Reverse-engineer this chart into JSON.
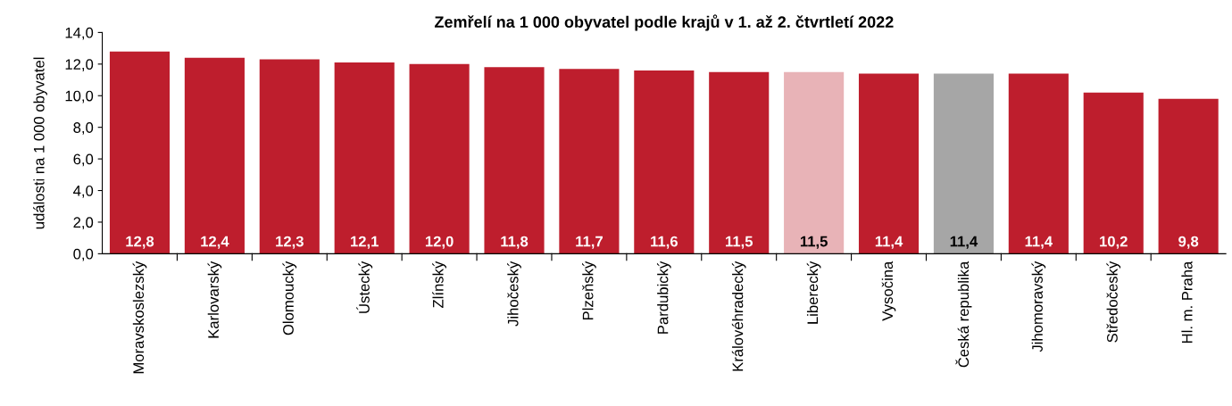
{
  "chart_data": {
    "type": "bar",
    "title": "Zemřelí na 1 000 obyvatel podle krajů v 1. až 2. čtvrtletí 2022",
    "ylabel": "události na 1 000 obyvatel",
    "categories": [
      "Moravskoslezský",
      "Karlovarský",
      "Olomoucký",
      "Ústecký",
      "Zlínský",
      "Jihočeský",
      "Plzeňský",
      "Pardubický",
      "Královéhradecký",
      "Liberecký",
      "Vysočina",
      "Česká republika",
      "Jihomoravský",
      "Středočeský",
      "Hl. m. Praha"
    ],
    "values": [
      12.8,
      12.4,
      12.3,
      12.1,
      12.0,
      11.8,
      11.7,
      11.6,
      11.5,
      11.5,
      11.4,
      11.4,
      11.4,
      10.2,
      9.8
    ],
    "colors": [
      "#be1e2d",
      "#be1e2d",
      "#be1e2d",
      "#be1e2d",
      "#be1e2d",
      "#be1e2d",
      "#be1e2d",
      "#be1e2d",
      "#be1e2d",
      "#e8b3b7",
      "#be1e2d",
      "#a6a6a6",
      "#be1e2d",
      "#be1e2d",
      "#be1e2d"
    ],
    "value_labels": [
      "12,8",
      "12,4",
      "12,3",
      "12,1",
      "12,0",
      "11,8",
      "11,7",
      "11,6",
      "11,5",
      "11,5",
      "11,4",
      "11,4",
      "11,4",
      "10,2",
      "9,8"
    ],
    "ylim": [
      0,
      14
    ],
    "yticks": [
      {
        "value": 0,
        "label": "0,0"
      },
      {
        "value": 2,
        "label": "2,0"
      },
      {
        "value": 4,
        "label": "4,0"
      },
      {
        "value": 6,
        "label": "6,0"
      },
      {
        "value": 8,
        "label": "8,0"
      },
      {
        "value": 10,
        "label": "10,0"
      },
      {
        "value": 12,
        "label": "12,0"
      },
      {
        "value": 14,
        "label": "14,0"
      }
    ],
    "grid": false,
    "legend": false
  }
}
